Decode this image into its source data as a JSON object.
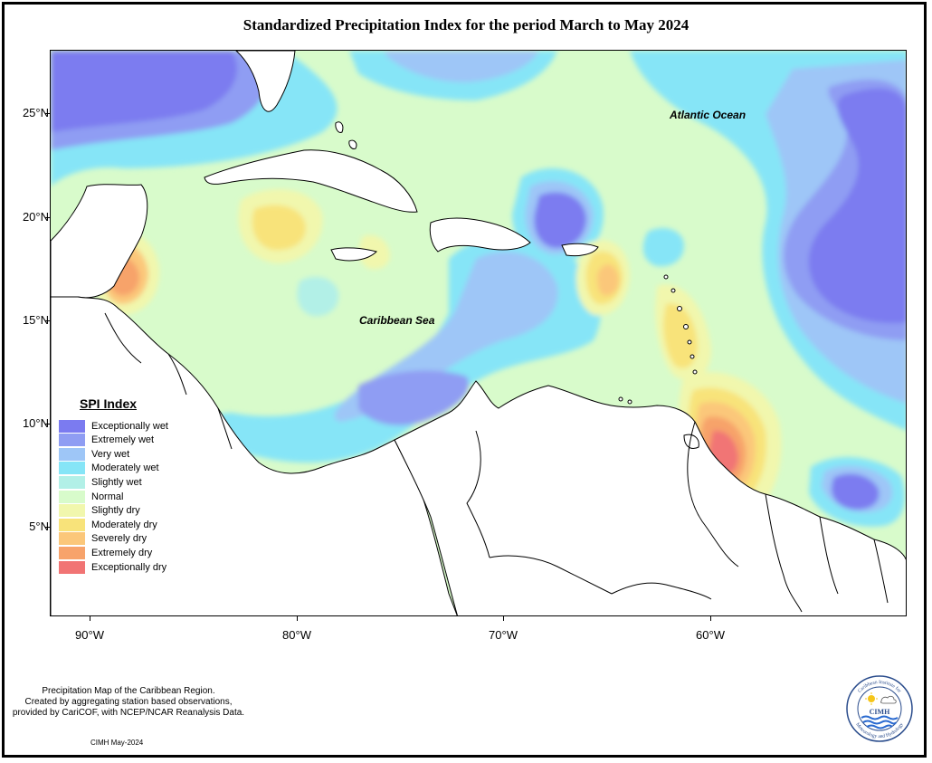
{
  "title": "Standardized Precipitation Index for the period March to May 2024",
  "labels": {
    "atlantic": "Atlantic Ocean",
    "caribbean": "Caribbean Sea"
  },
  "axes": {
    "y_ticks": [
      "25°N",
      "20°N",
      "15°N",
      "10°N",
      "5°N"
    ],
    "x_ticks": [
      "90°W",
      "80°W",
      "70°W",
      "60°W"
    ]
  },
  "legend": {
    "title": "SPI Index",
    "items": [
      {
        "label": "Exceptionally wet",
        "color": "#7b7bf0"
      },
      {
        "label": "Extremely wet",
        "color": "#8f9df3"
      },
      {
        "label": "Very wet",
        "color": "#9ec6f7"
      },
      {
        "label": "Moderately wet",
        "color": "#86e5f7"
      },
      {
        "label": "Slightly wet",
        "color": "#b2f0e7"
      },
      {
        "label": "Normal",
        "color": "#d8fbcb"
      },
      {
        "label": "Slightly dry",
        "color": "#f1f7ad"
      },
      {
        "label": "Moderately dry",
        "color": "#f8e37a"
      },
      {
        "label": "Severely dry",
        "color": "#fbc77a"
      },
      {
        "label": "Extremely dry",
        "color": "#f7a36b"
      },
      {
        "label": "Exceptionally dry",
        "color": "#f17474"
      }
    ]
  },
  "footer": {
    "line1": "Precipitation Map of the Caribbean Region.",
    "line2": "Created by aggregating station based observations,",
    "line3": "provided by CariCOF, with NCEP/NCAR Reanalysis Data.",
    "credit": "CIMH May-2024"
  },
  "logo": {
    "text": "CIMH",
    "ring_text_top": "Caribbean Institute for",
    "ring_text_bottom": "Meteorology and Hydrology"
  }
}
